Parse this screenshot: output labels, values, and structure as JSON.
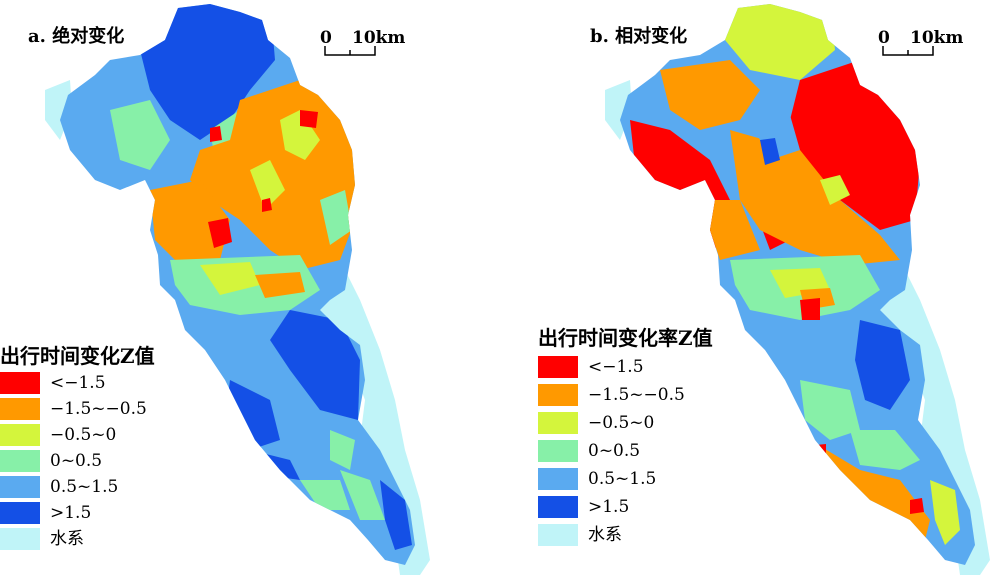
{
  "colors": {
    "c1": "#ff0000",
    "c2": "#ff9900",
    "c3": "#d4f53c",
    "c4": "#87f0a8",
    "c5": "#5aaaf0",
    "c6": "#1450e6",
    "water": "#c0f4f8"
  },
  "panels": [
    {
      "title": "a. 绝对变化",
      "scale": {
        "zero": "0",
        "end": "10km"
      },
      "legend": {
        "title": "出行时间变化Z值",
        "items": [
          {
            "label": "<−1.5",
            "color": "#ff0000"
          },
          {
            "label": "−1.5~−0.5",
            "color": "#ff9900"
          },
          {
            "label": "−0.5~0",
            "color": "#d4f53c"
          },
          {
            "label": "0~0.5",
            "color": "#87f0a8"
          },
          {
            "label": "0.5~1.5",
            "color": "#5aaaf0"
          },
          {
            "label": ">1.5",
            "color": "#1450e6"
          },
          {
            "label": "水系",
            "color": "#c0f4f8"
          }
        ]
      }
    },
    {
      "title": "b. 相对变化",
      "scale": {
        "zero": "0",
        "end": "10km"
      },
      "legend": {
        "title": "出行时间变化率Z值",
        "items": [
          {
            "label": "<−1.5",
            "color": "#ff0000"
          },
          {
            "label": "−1.5~−0.5",
            "color": "#ff9900"
          },
          {
            "label": "−0.5~0",
            "color": "#d4f53c"
          },
          {
            "label": "0~0.5",
            "color": "#87f0a8"
          },
          {
            "label": "0.5~1.5",
            "color": "#5aaaf0"
          },
          {
            "label": ">1.5",
            "color": "#1450e6"
          },
          {
            "label": "水系",
            "color": "#c0f4f8"
          }
        ]
      }
    }
  ]
}
